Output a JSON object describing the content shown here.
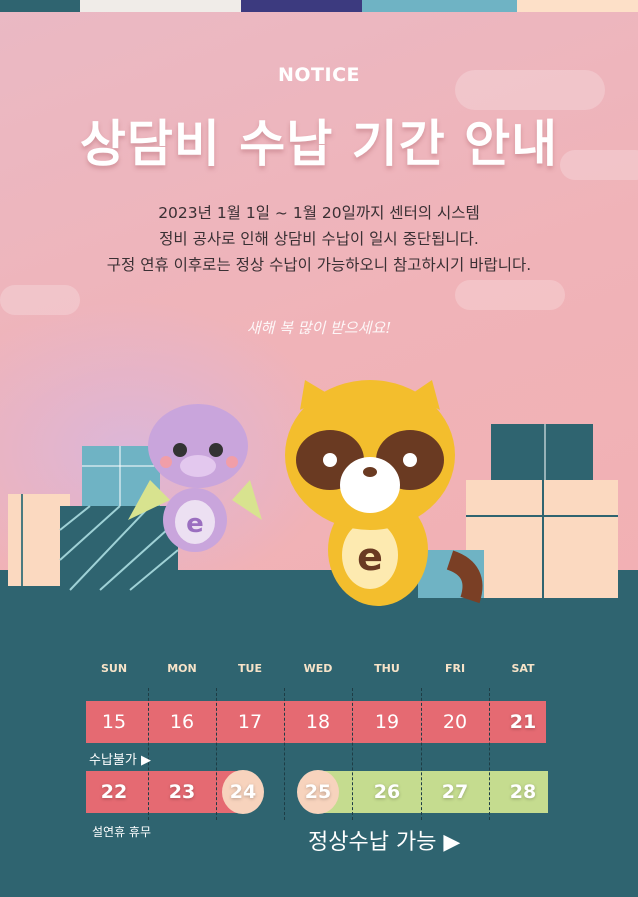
{
  "header": {
    "tag": "NOTICE",
    "title": "상담비 수납 기간 안내"
  },
  "description": [
    "2023년 1월 1일 ~ 1월 20일까지 센터의 시스템",
    "정비 공사로 인해 상담비 수납이 일시 중단됩니다.",
    "구정 연휴 이후로는 정상 수납이 가능하오니 참고하시기 바랍니다."
  ],
  "greeting": "새해 복 많이 받으세요!",
  "colors": {
    "floor": "#2f6470",
    "unavailable": "#e56a72",
    "available": "#c5dc8f",
    "holiday_circle": "#f7d3bd",
    "weekday_text": "#f7e3c8"
  },
  "calendar": {
    "weekdays": [
      "SUN",
      "MON",
      "TUE",
      "WED",
      "THU",
      "FRI",
      "SAT"
    ],
    "week1": [
      "15",
      "16",
      "17",
      "18",
      "19",
      "20",
      "21"
    ],
    "week2": [
      "22",
      "23",
      "24",
      "25",
      "26",
      "27",
      "28"
    ],
    "unavailable_label": "수납불가 ▶",
    "holiday_label": "설연휴 휴무",
    "available_label": "정상수납 가능 ▶"
  }
}
